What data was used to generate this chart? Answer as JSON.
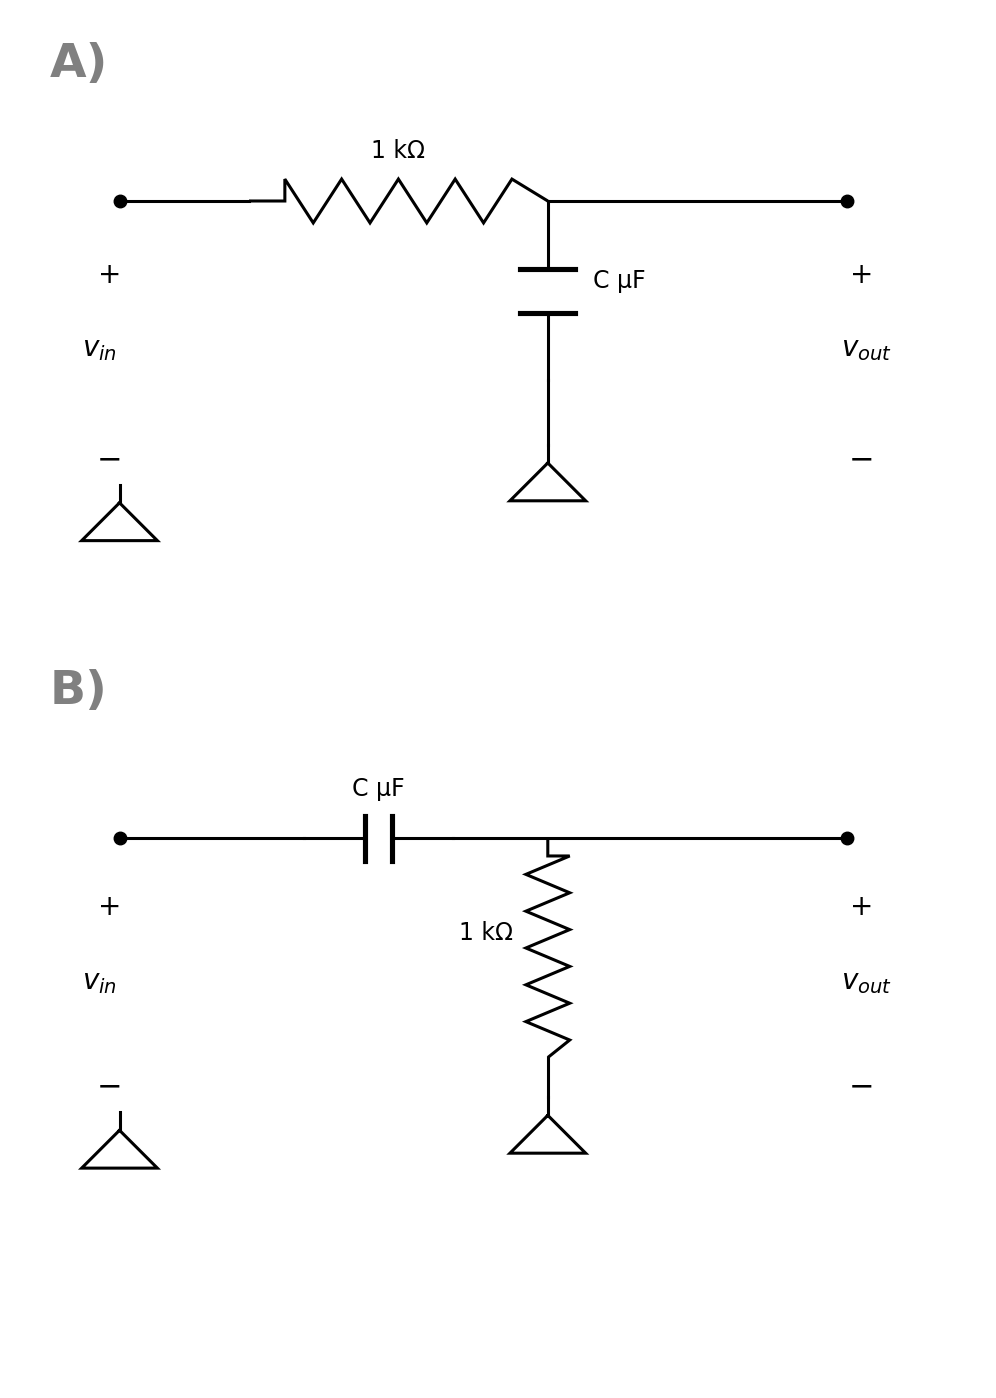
{
  "fig_width": 9.96,
  "fig_height": 13.98,
  "bg_color": "#ffffff",
  "label_A": "A)",
  "label_B": "B)",
  "label_color": "#808080",
  "line_color": "#000000",
  "lw": 2.2,
  "dot_size": 9,
  "circuit_A": {
    "resistor_label": "1 kΩ",
    "capacitor_label": "C μF",
    "vin_label": "v_{in}",
    "vout_label": "v_{out}"
  },
  "circuit_B": {
    "resistor_label": "1 kΩ",
    "capacitor_label": "C μF",
    "vin_label": "v_{in}",
    "vout_label": "v_{out}"
  }
}
